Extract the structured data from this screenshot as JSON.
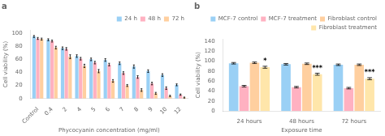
{
  "chart_data": [
    {
      "type": "bar",
      "title": "a",
      "categories": [
        "Control",
        "0.4",
        "2",
        "4",
        "5",
        "6",
        "7",
        "8",
        "9",
        "10",
        "12"
      ],
      "series": [
        {
          "name": "24 h",
          "values": [
            95,
            90,
            77,
            65,
            60,
            59,
            54,
            49,
            42,
            36,
            21
          ],
          "errors": [
            1.5,
            1.5,
            2,
            2,
            2,
            2,
            2,
            2.5,
            2,
            2,
            1.5
          ]
        },
        {
          "name": "48 h",
          "values": [
            92,
            88,
            76,
            61,
            55,
            52,
            39,
            33,
            23,
            16,
            6
          ],
          "errors": [
            1.5,
            1.5,
            2,
            2,
            2,
            2,
            2,
            2,
            2,
            2,
            1
          ]
        },
        {
          "name": "72 h",
          "values": [
            91,
            78,
            64,
            50,
            42,
            27,
            20,
            13,
            8,
            4,
            1.5
          ],
          "errors": [
            1.5,
            2,
            3,
            2.5,
            2.5,
            2,
            1.5,
            2,
            1.5,
            1,
            0.8
          ]
        }
      ],
      "xlabel": "Phycocyanin concentration (mg/ml)",
      "ylabel": "Cell viability (%)",
      "ylim": [
        0,
        105
      ],
      "yticks": [
        0,
        20,
        40,
        60,
        80,
        100
      ],
      "grid": false,
      "legend": "upper right"
    },
    {
      "type": "bar",
      "title": "b",
      "categories": [
        "24 hours",
        "48 hours",
        "72 hours"
      ],
      "series": [
        {
          "name": "MCF-7 control",
          "values": [
            96,
            94,
            93
          ],
          "errors": [
            1.5,
            1.5,
            1.5
          ]
        },
        {
          "name": "MCF-7 treatment",
          "values": [
            50,
            48,
            46
          ],
          "errors": [
            1.5,
            1.5,
            1.5
          ]
        },
        {
          "name": "Fibroblast control",
          "values": [
            97,
            95,
            93
          ],
          "errors": [
            1.5,
            1.5,
            1.5
          ]
        },
        {
          "name": "Fibroblast treatment",
          "values": [
            88,
            74,
            65
          ],
          "errors": [
            2,
            2,
            2
          ]
        }
      ],
      "annotations": [
        {
          "series": "Fibroblast treatment",
          "category": "24 hours",
          "text": "*"
        },
        {
          "series": "Fibroblast treatment",
          "category": "48 hours",
          "text": "***"
        },
        {
          "series": "Fibroblast treatment",
          "category": "72 hours",
          "text": "***"
        }
      ],
      "xlabel": "Exposure time",
      "ylabel": "Cell viability (%)",
      "ylim": [
        0,
        145
      ],
      "yticks": [
        0,
        20,
        40,
        60,
        80,
        100,
        120,
        140
      ],
      "grid": false,
      "legend": "upper right"
    }
  ]
}
